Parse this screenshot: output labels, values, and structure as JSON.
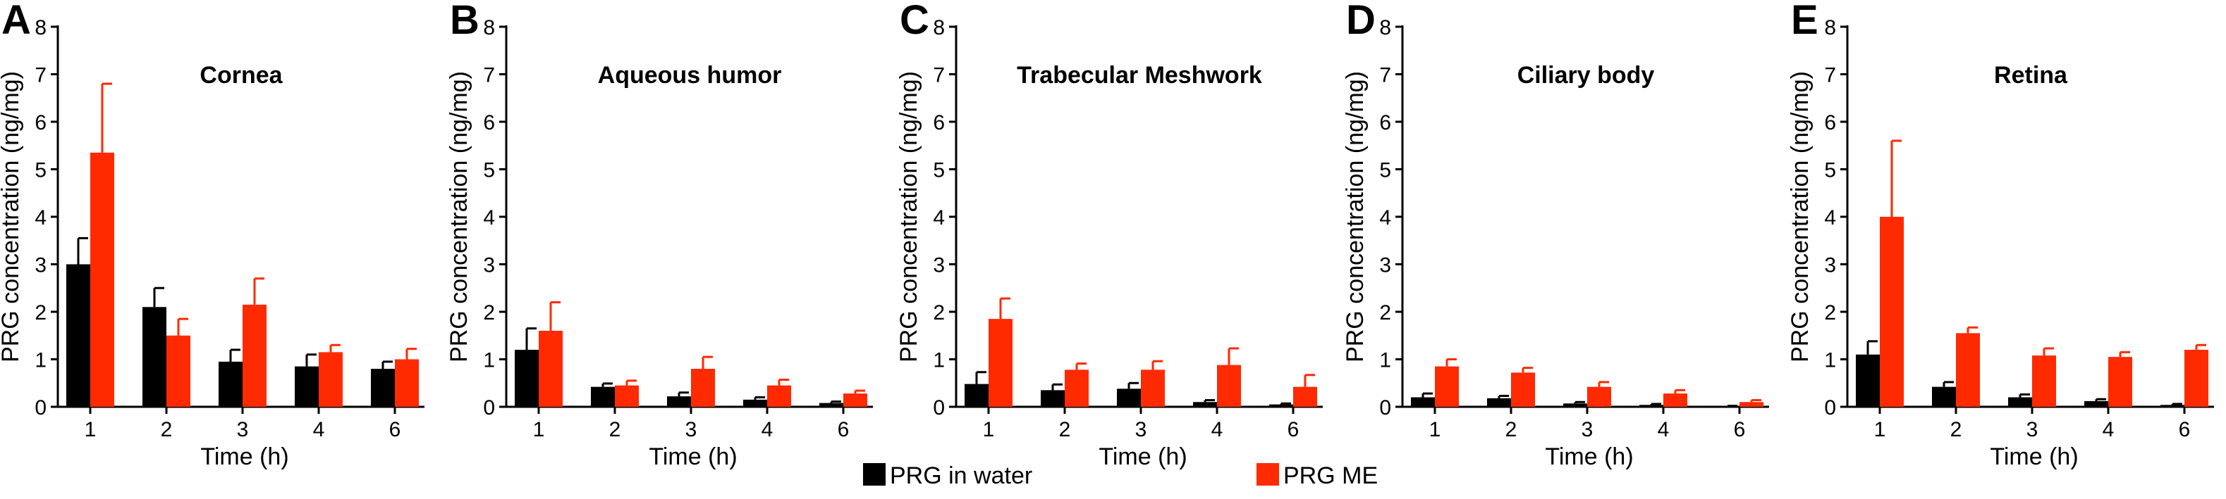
{
  "legend": [
    {
      "label": "PRG in water",
      "color": "#000000"
    },
    {
      "label": "PRG ME",
      "color": "#ff2a00"
    }
  ],
  "chart_data": [
    {
      "type": "bar",
      "panel": "A",
      "title": "Cornea",
      "xlabel": "Time (h)",
      "ylabel": "PRG concentration  (ng/mg)",
      "ylim": [
        0,
        8
      ],
      "yticks": [
        0,
        1,
        2,
        3,
        4,
        5,
        6,
        7,
        8
      ],
      "categories": [
        "1",
        "2",
        "3",
        "4",
        "6"
      ],
      "series": [
        {
          "name": "PRG in water",
          "values": [
            3.0,
            2.1,
            0.95,
            0.85,
            0.8
          ],
          "errors": [
            0.55,
            0.4,
            0.25,
            0.25,
            0.15
          ]
        },
        {
          "name": "PRG ME",
          "values": [
            5.35,
            1.5,
            2.15,
            1.15,
            1.0
          ],
          "errors": [
            1.45,
            0.35,
            0.55,
            0.15,
            0.22
          ]
        }
      ]
    },
    {
      "type": "bar",
      "panel": "B",
      "title": "Aqueous humor",
      "xlabel": "Time (h)",
      "ylabel": "PRG concentration  (ng/mg)",
      "ylim": [
        0,
        8
      ],
      "yticks": [
        0,
        1,
        2,
        3,
        4,
        5,
        6,
        7,
        8
      ],
      "categories": [
        "1",
        "2",
        "3",
        "4",
        "6"
      ],
      "series": [
        {
          "name": "PRG in water",
          "values": [
            1.2,
            0.42,
            0.22,
            0.15,
            0.08
          ],
          "errors": [
            0.45,
            0.07,
            0.08,
            0.05,
            0.03
          ]
        },
        {
          "name": "PRG ME",
          "values": [
            1.6,
            0.45,
            0.8,
            0.45,
            0.28
          ],
          "errors": [
            0.6,
            0.1,
            0.25,
            0.12,
            0.06
          ]
        }
      ]
    },
    {
      "type": "bar",
      "panel": "C",
      "title": "Trabecular Meshwork",
      "xlabel": "Time (h)",
      "ylabel": "PRG concentration  (ng/mg)",
      "ylim": [
        0,
        8
      ],
      "yticks": [
        0,
        1,
        2,
        3,
        4,
        5,
        6,
        7,
        8
      ],
      "categories": [
        "1",
        "2",
        "3",
        "4",
        "6"
      ],
      "series": [
        {
          "name": "PRG in water",
          "values": [
            0.48,
            0.35,
            0.38,
            0.1,
            0.05
          ],
          "errors": [
            0.25,
            0.12,
            0.12,
            0.04,
            0.02
          ]
        },
        {
          "name": "PRG ME",
          "values": [
            1.85,
            0.78,
            0.78,
            0.88,
            0.42
          ],
          "errors": [
            0.43,
            0.13,
            0.18,
            0.35,
            0.25
          ]
        }
      ]
    },
    {
      "type": "bar",
      "panel": "D",
      "title": "Ciliary body",
      "xlabel": "Time (h)",
      "ylabel": "PRG concentration  (ng/mg)",
      "ylim": [
        0,
        8
      ],
      "yticks": [
        0,
        1,
        2,
        3,
        4,
        5,
        6,
        7,
        8
      ],
      "categories": [
        "1",
        "2",
        "3",
        "4",
        "6"
      ],
      "series": [
        {
          "name": "PRG in water",
          "values": [
            0.2,
            0.18,
            0.07,
            0.04,
            0.01
          ],
          "errors": [
            0.08,
            0.05,
            0.03,
            0.02,
            0.01
          ]
        },
        {
          "name": "PRG ME",
          "values": [
            0.85,
            0.72,
            0.42,
            0.28,
            0.1
          ],
          "errors": [
            0.15,
            0.1,
            0.1,
            0.07,
            0.04
          ]
        }
      ]
    },
    {
      "type": "bar",
      "panel": "E",
      "title": "Retina",
      "xlabel": "Time (h)",
      "ylabel": "PRG concentration  (ng/mg)",
      "ylim": [
        0,
        8
      ],
      "yticks": [
        0,
        1,
        2,
        3,
        4,
        5,
        6,
        7,
        8
      ],
      "categories": [
        "1",
        "2",
        "3",
        "4",
        "6"
      ],
      "series": [
        {
          "name": "PRG in water",
          "values": [
            1.1,
            0.42,
            0.2,
            0.12,
            0.04
          ],
          "errors": [
            0.28,
            0.1,
            0.06,
            0.04,
            0.02
          ]
        },
        {
          "name": "PRG ME",
          "values": [
            4.0,
            1.55,
            1.08,
            1.05,
            1.2
          ],
          "errors": [
            1.6,
            0.12,
            0.15,
            0.1,
            0.1
          ]
        }
      ]
    }
  ]
}
